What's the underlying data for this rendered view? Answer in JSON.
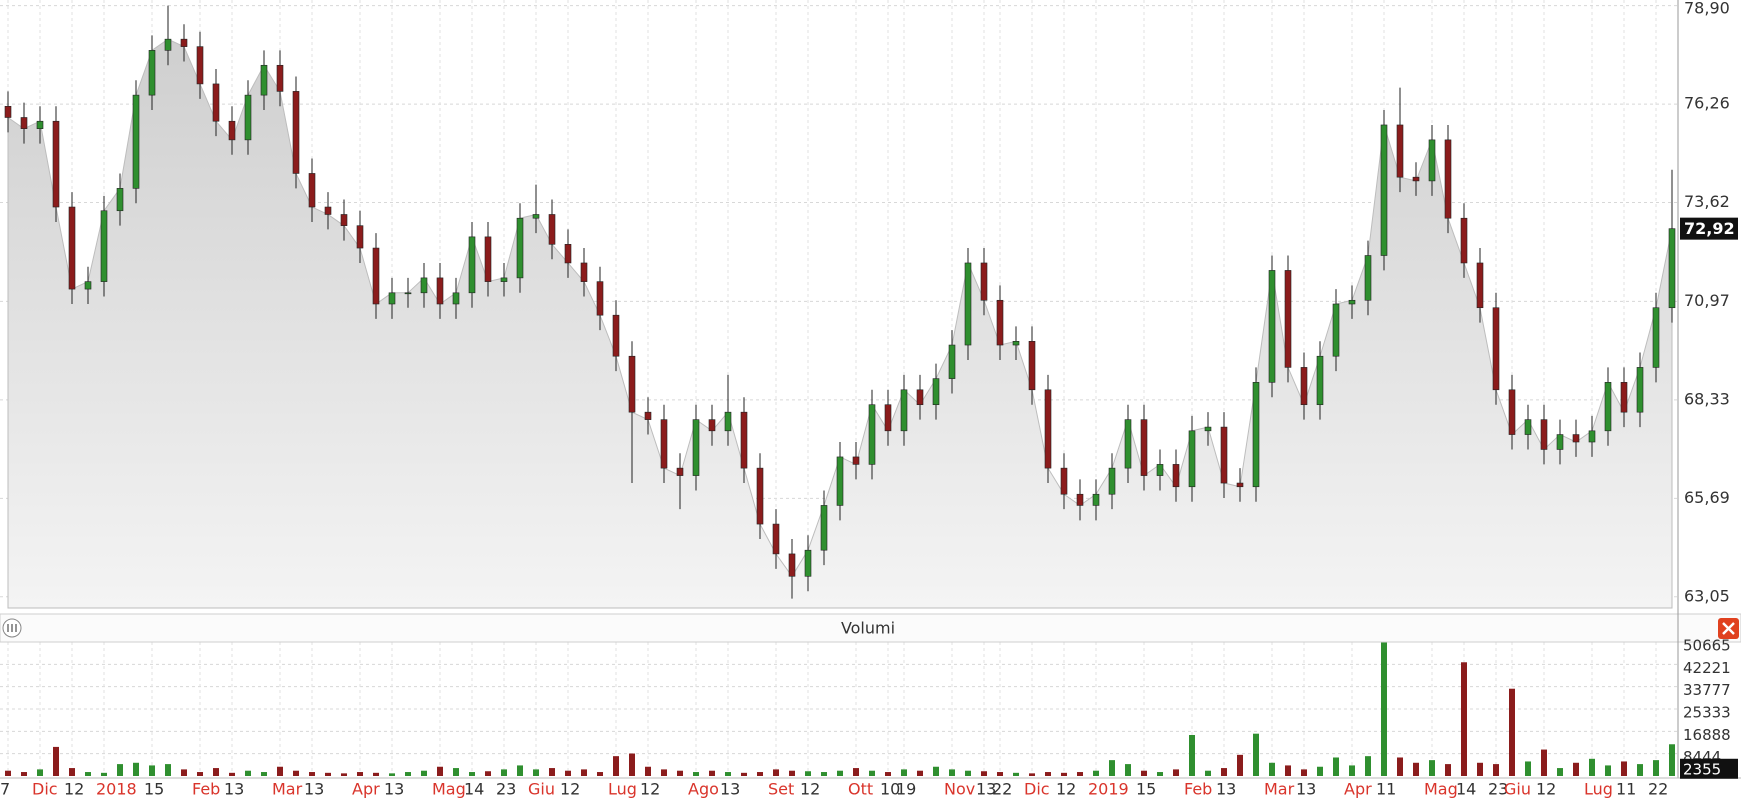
{
  "chart_data": {
    "type": "candlestick",
    "up_color": "#2f8f2f",
    "down_color": "#8b1c1c",
    "area_color": "#d9d9d9",
    "grid": true,
    "categories": [
      "7",
      null,
      "Dic",
      null,
      "12",
      null,
      "2018",
      null,
      null,
      "15",
      null,
      null,
      "Feb",
      null,
      "13",
      null,
      null,
      "Mar",
      null,
      "13",
      null,
      null,
      "Apr",
      null,
      "13",
      null,
      null,
      "Mag",
      null,
      "14",
      null,
      "23",
      null,
      "Giu",
      null,
      "12",
      null,
      null,
      "Lug",
      null,
      "12",
      null,
      null,
      "Ago",
      null,
      "13",
      null,
      null,
      "Set",
      null,
      "12",
      null,
      null,
      "Ott",
      null,
      "10",
      "19",
      null,
      null,
      "Nov",
      null,
      "13",
      "22",
      null,
      "Dic",
      null,
      "12",
      null,
      "2019",
      null,
      null,
      "15",
      null,
      null,
      "Feb",
      null,
      "13",
      null,
      null,
      "Mar",
      null,
      "13",
      null,
      null,
      "Apr",
      null,
      "11",
      null,
      null,
      "Mag",
      null,
      "14",
      null,
      "23",
      "Giu",
      null,
      "12",
      null,
      null,
      "Lug",
      null,
      "11",
      null,
      "22",
      null
    ],
    "open": [
      76.2,
      75.9,
      75.6,
      75.8,
      73.5,
      71.3,
      71.5,
      73.4,
      74.0,
      76.5,
      77.7,
      78.0,
      77.8,
      76.8,
      75.8,
      75.3,
      76.5,
      77.3,
      76.6,
      74.4,
      73.5,
      73.3,
      73.0,
      72.4,
      70.9,
      71.2,
      71.2,
      71.6,
      70.9,
      71.2,
      72.7,
      71.5,
      71.6,
      73.2,
      73.3,
      72.5,
      72.0,
      71.5,
      70.6,
      69.5,
      68.0,
      67.8,
      66.5,
      66.3,
      67.8,
      67.5,
      68.0,
      66.5,
      65.0,
      64.2,
      63.6,
      64.3,
      65.5,
      66.8,
      66.6,
      68.2,
      67.5,
      68.6,
      68.2,
      68.9,
      69.8,
      72.0,
      71.0,
      69.8,
      69.9,
      68.6,
      66.5,
      65.8,
      65.5,
      65.8,
      66.5,
      67.8,
      66.3,
      66.6,
      66.0,
      67.5,
      67.6,
      66.1,
      66.0,
      68.8,
      71.8,
      69.2,
      68.2,
      69.5,
      70.9,
      71.0,
      72.2,
      75.7,
      74.3,
      74.2,
      75.3,
      73.2,
      72.0,
      70.8,
      68.6,
      67.4,
      67.8,
      67.0,
      67.4,
      67.2,
      67.5,
      68.8,
      68.0,
      69.2,
      70.8
    ],
    "high": [
      76.6,
      76.3,
      76.2,
      76.2,
      73.9,
      71.9,
      73.8,
      74.4,
      76.9,
      78.1,
      78.9,
      78.4,
      78.2,
      77.2,
      76.2,
      76.9,
      77.7,
      77.7,
      77.0,
      74.8,
      73.9,
      73.7,
      73.4,
      72.8,
      71.6,
      71.6,
      72.0,
      72.0,
      71.6,
      73.1,
      73.1,
      72.0,
      73.6,
      74.1,
      73.7,
      72.9,
      72.4,
      71.9,
      71.0,
      69.9,
      68.4,
      68.2,
      66.9,
      68.2,
      68.2,
      69.0,
      68.4,
      66.9,
      65.4,
      64.6,
      64.7,
      65.9,
      67.2,
      67.2,
      68.6,
      68.6,
      69.0,
      69.0,
      69.3,
      70.2,
      72.4,
      72.4,
      71.4,
      70.3,
      70.3,
      69.0,
      66.9,
      66.2,
      66.2,
      66.9,
      68.2,
      68.2,
      67.0,
      67.0,
      67.9,
      68.0,
      68.0,
      66.5,
      69.2,
      72.2,
      72.2,
      69.6,
      69.9,
      71.3,
      71.4,
      72.6,
      76.1,
      76.7,
      74.7,
      75.7,
      75.7,
      73.6,
      72.4,
      71.2,
      69.0,
      68.2,
      68.2,
      67.8,
      67.8,
      67.9,
      69.2,
      69.2,
      69.6,
      71.2,
      74.5
    ],
    "low": [
      75.5,
      75.2,
      75.2,
      73.1,
      70.9,
      70.9,
      71.1,
      73.0,
      73.6,
      76.1,
      77.3,
      77.4,
      76.4,
      75.4,
      74.9,
      74.9,
      76.1,
      76.2,
      74.0,
      73.1,
      72.9,
      72.6,
      72.0,
      70.5,
      70.5,
      70.8,
      70.8,
      70.5,
      70.5,
      70.8,
      71.1,
      71.1,
      71.2,
      72.8,
      72.1,
      71.6,
      71.1,
      70.2,
      69.1,
      66.1,
      67.4,
      66.1,
      65.4,
      65.9,
      67.1,
      67.1,
      66.1,
      64.6,
      63.8,
      63.0,
      63.2,
      63.9,
      65.1,
      66.2,
      66.2,
      67.1,
      67.1,
      67.8,
      67.8,
      68.5,
      69.4,
      70.6,
      69.4,
      69.4,
      68.2,
      66.1,
      65.4,
      65.1,
      65.1,
      65.4,
      66.1,
      65.9,
      65.9,
      65.6,
      65.6,
      67.1,
      65.7,
      65.6,
      65.6,
      68.4,
      68.8,
      67.8,
      67.8,
      69.1,
      70.5,
      70.6,
      71.8,
      73.9,
      73.8,
      73.8,
      72.8,
      71.6,
      70.4,
      68.2,
      67.0,
      67.0,
      66.6,
      66.6,
      66.8,
      66.8,
      67.1,
      67.6,
      67.6,
      68.8,
      70.4
    ],
    "close": [
      75.9,
      75.6,
      75.8,
      73.5,
      71.3,
      71.5,
      73.4,
      74.0,
      76.5,
      77.7,
      78.0,
      77.8,
      76.8,
      75.8,
      75.3,
      76.5,
      77.3,
      76.6,
      74.4,
      73.5,
      73.3,
      73.0,
      72.4,
      70.9,
      71.2,
      71.2,
      71.6,
      70.9,
      71.2,
      72.7,
      71.5,
      71.6,
      73.2,
      73.3,
      72.5,
      72.0,
      71.5,
      70.6,
      69.5,
      68.0,
      67.8,
      66.5,
      66.3,
      67.8,
      67.5,
      68.0,
      66.5,
      65.0,
      64.2,
      63.6,
      64.3,
      65.5,
      66.8,
      66.6,
      68.2,
      67.5,
      68.6,
      68.2,
      68.9,
      69.8,
      72.0,
      71.0,
      69.8,
      69.9,
      68.6,
      66.5,
      65.8,
      65.5,
      65.8,
      66.5,
      67.8,
      66.3,
      66.6,
      66.0,
      67.5,
      67.6,
      66.1,
      66.0,
      68.8,
      71.8,
      69.2,
      68.2,
      69.5,
      70.9,
      71.0,
      72.2,
      75.7,
      74.3,
      74.2,
      75.3,
      73.2,
      72.0,
      70.8,
      68.6,
      67.4,
      67.8,
      67.0,
      67.4,
      67.2,
      67.5,
      68.8,
      68.0,
      69.2,
      70.8,
      72.92
    ],
    "ylim": [
      62.75,
      79.05
    ],
    "yticks": [
      {
        "value": 63.05,
        "label": "63,05"
      },
      {
        "value": 65.69,
        "label": "65,69"
      },
      {
        "value": 68.33,
        "label": "68,33"
      },
      {
        "value": 70.97,
        "label": "70,97"
      },
      {
        "value": 73.62,
        "label": "73,62"
      },
      {
        "value": 76.26,
        "label": "76,26"
      },
      {
        "value": 78.9,
        "label": "78,90"
      }
    ],
    "current_price": {
      "value": 72.92,
      "label": "72,92"
    },
    "volume": {
      "title": "Volumi",
      "values": [
        2000,
        1500,
        2500,
        11000,
        3000,
        1500,
        1200,
        4500,
        5000,
        4000,
        4500,
        2500,
        1500,
        3000,
        1200,
        2000,
        1500,
        3500,
        2000,
        1500,
        1200,
        1000,
        1500,
        1200,
        1000,
        1500,
        2000,
        3500,
        3000,
        1500,
        1800,
        2500,
        4000,
        2500,
        3000,
        2000,
        2500,
        1500,
        7500,
        8500,
        3500,
        2500,
        2000,
        1500,
        2000,
        1500,
        1200,
        1500,
        2500,
        2000,
        1800,
        1500,
        2000,
        3000,
        2000,
        1500,
        2500,
        2000,
        3500,
        2500,
        2000,
        1800,
        1500,
        1200,
        1000,
        1500,
        1200,
        1500,
        2000,
        6000,
        4500,
        2000,
        1500,
        2500,
        15500,
        2000,
        3000,
        8000,
        16000,
        5000,
        4000,
        2500,
        3500,
        7000,
        4000,
        7500,
        50665,
        7000,
        5000,
        6000,
        4500,
        43000,
        5000,
        4500,
        33000,
        5500,
        10000,
        3000,
        5000,
        6500,
        4000,
        5500,
        4500,
        6000,
        12000
      ],
      "ylim": [
        0,
        50665
      ],
      "yticks": [
        8444,
        16888,
        25333,
        33777,
        42221,
        50665
      ],
      "current": 2355
    }
  }
}
